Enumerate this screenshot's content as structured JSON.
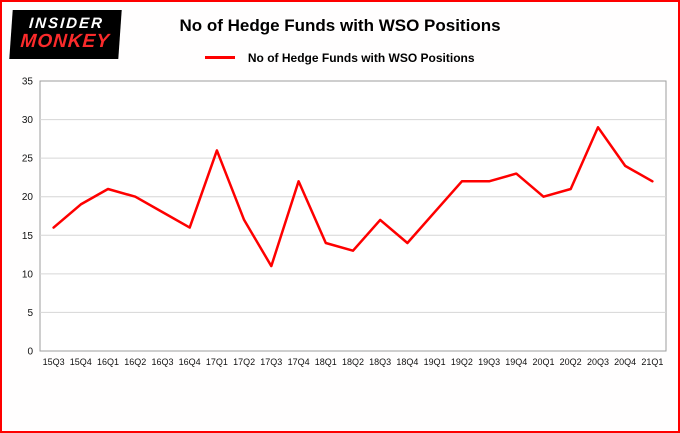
{
  "logo": {
    "line1": "INSIDER",
    "line2": "MONKEY",
    "bg": "#000000",
    "line1_color": "#ffffff",
    "line2_color": "#fb2b2b"
  },
  "header": {
    "title": "No of Hedge Funds with WSO Positions"
  },
  "legend": {
    "label": "No of Hedge Funds with WSO Positions"
  },
  "frame": {
    "border_color": "#fe0000"
  },
  "chart_data": {
    "type": "line",
    "title": "No of Hedge Funds with WSO Positions",
    "xlabel": "",
    "ylabel": "",
    "ylim": [
      0,
      35
    ],
    "yticks": [
      0,
      5,
      10,
      15,
      20,
      25,
      30,
      35
    ],
    "grid": true,
    "legend_position": "top",
    "categories": [
      "15Q3",
      "15Q4",
      "16Q1",
      "16Q2",
      "16Q3",
      "16Q4",
      "17Q1",
      "17Q2",
      "17Q3",
      "17Q4",
      "18Q1",
      "18Q2",
      "18Q3",
      "18Q4",
      "19Q1",
      "19Q2",
      "19Q3",
      "19Q4",
      "20Q1",
      "20Q2",
      "20Q3",
      "20Q4",
      "21Q1"
    ],
    "series": [
      {
        "name": "No of Hedge Funds with WSO Positions",
        "color": "#fe0000",
        "values": [
          16,
          19,
          21,
          20,
          18,
          16,
          26,
          17,
          11,
          22,
          14,
          13,
          17,
          14,
          18,
          22,
          22,
          23,
          20,
          21,
          29,
          24,
          22
        ]
      }
    ]
  }
}
